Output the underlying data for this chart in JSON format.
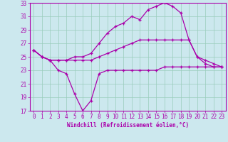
{
  "xlabel": "Windchill (Refroidissement éolien,°C)",
  "bg_color": "#cce8ee",
  "line_color": "#aa00aa",
  "grid_color": "#99ccbb",
  "xlim": [
    -0.5,
    23.5
  ],
  "ylim": [
    17,
    33
  ],
  "yticks": [
    17,
    19,
    21,
    23,
    25,
    27,
    29,
    31,
    33
  ],
  "xticks": [
    0,
    1,
    2,
    3,
    4,
    5,
    6,
    7,
    8,
    9,
    10,
    11,
    12,
    13,
    14,
    15,
    16,
    17,
    18,
    19,
    20,
    21,
    22,
    23
  ],
  "line1_x": [
    0,
    1,
    2,
    3,
    4,
    5,
    6,
    7,
    8,
    9,
    10,
    11,
    12,
    13,
    14,
    15,
    16,
    17,
    18,
    19,
    20,
    21,
    22,
    23
  ],
  "line1_y": [
    26.0,
    25.0,
    24.5,
    23.0,
    22.5,
    19.5,
    17.0,
    18.5,
    22.5,
    23.0,
    23.0,
    23.0,
    23.0,
    23.0,
    23.0,
    23.0,
    23.5,
    23.5,
    23.5,
    23.5,
    23.5,
    23.5,
    23.5,
    23.5
  ],
  "line2_x": [
    0,
    1,
    2,
    3,
    4,
    5,
    6,
    7,
    8,
    9,
    10,
    11,
    12,
    13,
    14,
    15,
    16,
    17,
    18,
    19,
    20,
    21,
    22,
    23
  ],
  "line2_y": [
    26.0,
    25.0,
    24.5,
    24.5,
    24.5,
    24.5,
    24.5,
    24.5,
    25.0,
    25.5,
    26.0,
    26.5,
    27.0,
    27.5,
    27.5,
    27.5,
    27.5,
    27.5,
    27.5,
    27.5,
    25.0,
    24.0,
    23.5,
    23.5
  ],
  "line3_x": [
    0,
    1,
    2,
    3,
    4,
    5,
    6,
    7,
    8,
    9,
    10,
    11,
    12,
    13,
    14,
    15,
    16,
    17,
    18,
    19,
    20,
    21,
    22,
    23
  ],
  "line3_y": [
    26.0,
    25.0,
    24.5,
    24.5,
    24.5,
    25.0,
    25.0,
    25.5,
    27.0,
    28.5,
    29.5,
    30.0,
    31.0,
    30.5,
    32.0,
    32.5,
    33.0,
    32.5,
    31.5,
    27.5,
    25.0,
    24.5,
    24.0,
    23.5
  ],
  "xlabel_fontsize": 5.5,
  "tick_fontsize": 5.5,
  "linewidth": 0.9,
  "markersize": 3.5
}
